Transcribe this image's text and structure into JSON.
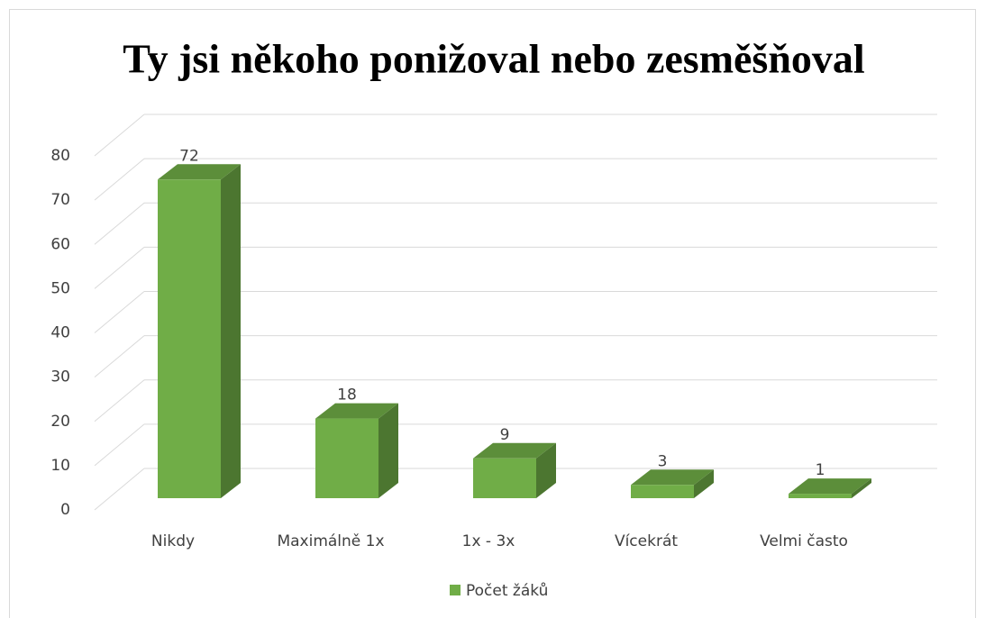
{
  "chart_data": {
    "type": "bar3d",
    "title": "Ty jsi někoho ponižoval nebo zesměšňoval",
    "categories": [
      "Nikdy",
      "Maximálně 1x",
      "1x - 3x",
      "Vícekrát",
      "Velmi často"
    ],
    "series": [
      {
        "name": "Počet žáků",
        "color": "#70ad47",
        "values": [
          72,
          18,
          9,
          3,
          1
        ]
      }
    ],
    "ylim": [
      0,
      80
    ],
    "yticks": [
      0,
      10,
      20,
      30,
      40,
      50,
      60,
      70,
      80
    ],
    "grid": true,
    "legend": "bottom"
  }
}
